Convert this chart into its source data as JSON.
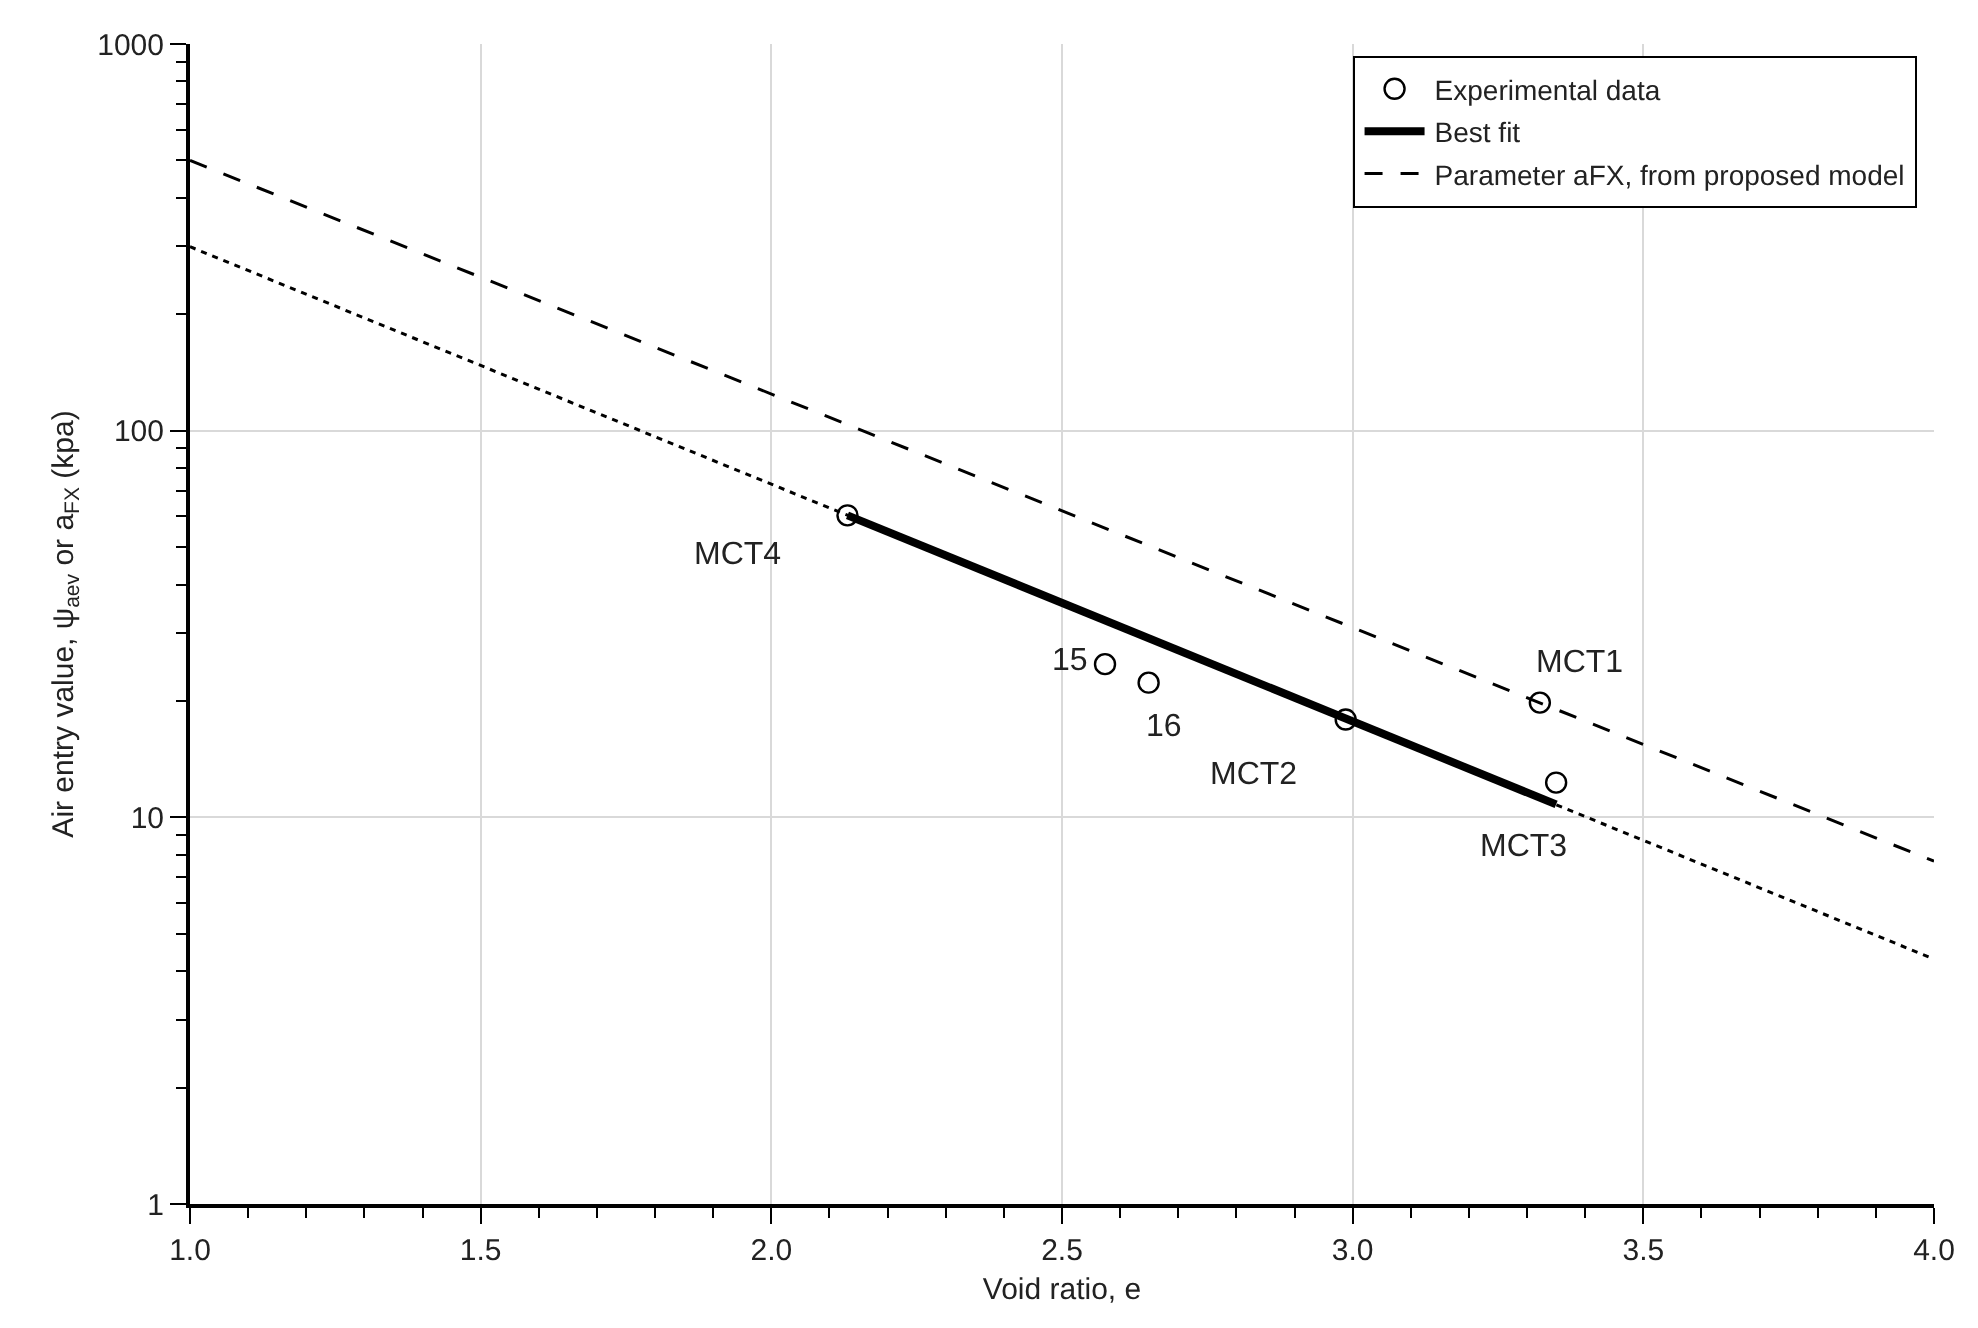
{
  "chart_data": {
    "type": "scatter",
    "xlabel": "Void ratio, e",
    "ylabel": "Air entry value, ψ$_{aev}$ or a$_{FX}$ (kpa)",
    "xlim": [
      1.0,
      4.0
    ],
    "xticks": [
      {
        "value": 1.0,
        "label": "1.0"
      },
      1.5,
      {
        "value": 2.0,
        "label": "2.0"
      },
      2.5,
      {
        "value": 3.0,
        "label": "3.0"
      },
      3.5,
      {
        "value": 4.0,
        "label": "4.0"
      }
    ],
    "ylim": [
      1,
      1000
    ],
    "yticks": [
      1,
      10,
      100,
      1000
    ],
    "log": true,
    "grid": true,
    "legend": "top right",
    "series": [
      {
        "name": "Experimental data",
        "marker": "circle",
        "color": "#000000",
        "x": [
          2.131,
          2.574,
          2.649,
          2.988,
          3.322,
          3.35
        ],
        "values": [
          60.4,
          24.9,
          22.3,
          17.9,
          19.8,
          12.3
        ]
      },
      {
        "name": "Best fit",
        "type": "line",
        "marker": "none",
        "line_style": "solid",
        "color": "#000000",
        "x": [
          2.131,
          3.35
        ],
        "values": [
          60.4,
          10.8
        ]
      },
      {
        "type": "line",
        "marker": "none",
        "line_style": "dotted",
        "color": "#000000",
        "x": [
          1.0,
          4.0
        ],
        "values": [
          299,
          4.3
        ]
      },
      {
        "name": "Parameter aFX, from proposed model",
        "type": "line",
        "marker": "none",
        "line_style": "dashed",
        "color": "#000000",
        "x": [
          1.0,
          4.0
        ],
        "values": [
          500,
          7.7
        ]
      }
    ],
    "annotations": [
      {
        "text": "MCT4",
        "x": 2.131,
        "y": 60.4
      },
      {
        "text": "15",
        "x": 2.574,
        "y": 24.9
      },
      {
        "text": "16",
        "x": 2.649,
        "y": 22.3
      },
      {
        "text": "MCT2",
        "x": 2.988,
        "y": 17.9
      },
      {
        "text": "MCT1",
        "x": 3.322,
        "y": 19.8
      },
      {
        "text": "MCT3",
        "x": 3.35,
        "y": 12.3
      }
    ]
  }
}
